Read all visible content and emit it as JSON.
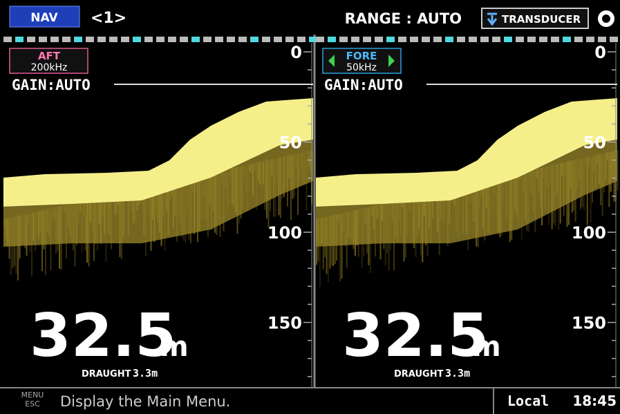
{
  "header": {
    "mode": "NAV",
    "page": "<1>",
    "range": "RANGE : AUTO",
    "transducer": "TRANSDUCER"
  },
  "panels": [
    {
      "transducer": "AFT",
      "frequency": "200kHz",
      "gain": "GAIN:AUTO",
      "scale": [
        "0",
        "50",
        "100",
        "150"
      ],
      "depth": "32.5",
      "depth_unit": "m",
      "draught_label": "DRAUGHT :",
      "draught_value": "3.3m"
    },
    {
      "transducer": "FORE",
      "frequency": "50kHz",
      "gain": "GAIN:AUTO",
      "scale": [
        "0",
        "50",
        "100",
        "150"
      ],
      "depth": "32.5",
      "depth_unit": "m",
      "draught_label": "DRAUGHT :",
      "draught_value": "3.3m"
    }
  ],
  "footer": {
    "key_top": "MENU",
    "key_bottom": "ESC",
    "hint": "Display the Main Menu.",
    "time_zone": "Local",
    "time": "18:45"
  }
}
